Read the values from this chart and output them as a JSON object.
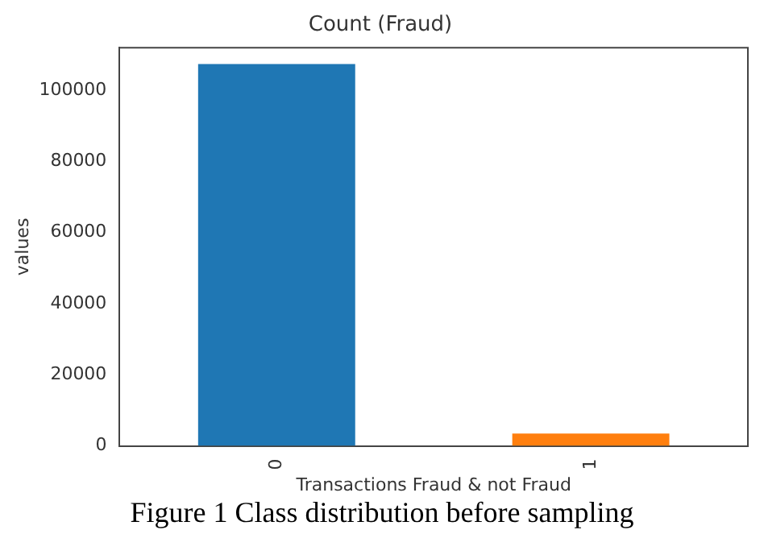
{
  "chart_data": {
    "type": "bar",
    "title": "Count (Fraud)",
    "xlabel": "Transactions Fraud & not Fraud",
    "ylabel": "values",
    "categories": [
      "0",
      "1"
    ],
    "values": [
      107400,
      3500
    ],
    "colors": [
      "#1f77b4",
      "#ff7f0e"
    ],
    "ylim": [
      0,
      112000
    ],
    "yticks": [
      0,
      20000,
      40000,
      60000,
      80000,
      100000
    ],
    "grid": false,
    "legend": false,
    "annotations": [
      "Figure 1 Class distribution before sampling"
    ]
  }
}
